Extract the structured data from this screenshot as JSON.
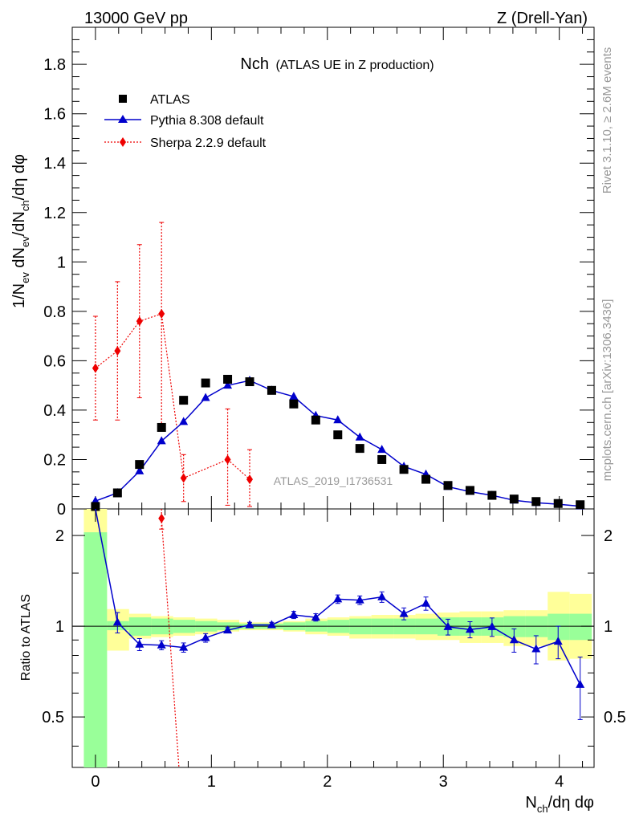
{
  "header": {
    "left": "13000 GeV pp",
    "right": "Z (Drell-Yan)"
  },
  "side": {
    "rivet": "Rivet 3.1.10, ≥ 2.6M events",
    "mcplots": "mcplots.cern.ch [arXiv:1306.3436]"
  },
  "chart_data": {
    "type": "scatter",
    "title_main": "Nch",
    "title_sub": "(ATLAS UE in Z production)",
    "analysis_label": "ATLAS_2019_I1736531",
    "ylabel_parts": [
      "1/N",
      "ev",
      " dN",
      "ev",
      "/dN",
      "ch",
      "/dη dφ"
    ],
    "xlabel_parts": [
      "N",
      "ch",
      "/dη dφ"
    ],
    "ratio_ylabel": "Ratio to ATLAS",
    "xlim": [
      -0.2,
      4.3
    ],
    "main_ylim": [
      0,
      1.95
    ],
    "ratio_ylim": [
      0.34,
      2.45
    ],
    "x_ticks": [
      "0",
      "1",
      "2",
      "3",
      "4"
    ],
    "main_y_ticks": [
      "0",
      "0.2",
      "0.4",
      "0.6",
      "0.8",
      "1",
      "1.2",
      "1.4",
      "1.6",
      "1.8"
    ],
    "ratio_y_ticks": [
      "0.5",
      "1",
      "2"
    ],
    "legend": {
      "position": "top-left",
      "entries": [
        "ATLAS",
        "Pythia 8.308 default",
        "Sherpa 2.2.9 default"
      ]
    },
    "series": [
      {
        "name": "ATLAS",
        "color": "#000000",
        "marker": "square",
        "x": [
          0.0,
          0.19,
          0.38,
          0.57,
          0.76,
          0.95,
          1.14,
          1.33,
          1.52,
          1.71,
          1.9,
          2.09,
          2.28,
          2.47,
          2.66,
          2.85,
          3.04,
          3.23,
          3.42,
          3.61,
          3.8,
          3.99,
          4.18
        ],
        "y": [
          0.01,
          0.065,
          0.18,
          0.33,
          0.44,
          0.51,
          0.525,
          0.515,
          0.48,
          0.425,
          0.36,
          0.3,
          0.245,
          0.2,
          0.16,
          0.12,
          0.095,
          0.075,
          0.055,
          0.04,
          0.03,
          0.022,
          0.017
        ]
      },
      {
        "name": "Pythia 8.308 default",
        "color": "#0000cc",
        "marker": "triangle",
        "x": [
          0.0,
          0.19,
          0.38,
          0.57,
          0.76,
          0.95,
          1.14,
          1.33,
          1.52,
          1.71,
          1.9,
          2.09,
          2.28,
          2.47,
          2.66,
          2.85,
          3.04,
          3.23,
          3.42,
          3.61,
          3.8,
          3.99,
          4.18
        ],
        "y": [
          0.032,
          0.065,
          0.153,
          0.275,
          0.353,
          0.45,
          0.5,
          0.52,
          0.48,
          0.455,
          0.378,
          0.36,
          0.29,
          0.24,
          0.172,
          0.14,
          0.09,
          0.07,
          0.055,
          0.035,
          0.025,
          0.019,
          0.011
        ],
        "ratio": [
          3.2,
          1.03,
          0.87,
          0.865,
          0.85,
          0.915,
          0.97,
          1.01,
          1.01,
          1.09,
          1.07,
          1.23,
          1.22,
          1.25,
          1.1,
          1.19,
          0.995,
          0.975,
          0.995,
          0.9,
          0.84,
          0.89,
          0.64
        ],
        "ratio_err": [
          0,
          0.08,
          0.04,
          0.03,
          0.03,
          0.03,
          0.02,
          0.02,
          0.02,
          0.03,
          0.03,
          0.04,
          0.04,
          0.05,
          0.05,
          0.06,
          0.06,
          0.06,
          0.07,
          0.08,
          0.09,
          0.11,
          0.15
        ]
      },
      {
        "name": "Sherpa 2.2.9 default",
        "color": "#ee0000",
        "marker": "diamond",
        "x": [
          0.0,
          0.19,
          0.38,
          0.57,
          0.76,
          1.14,
          1.33
        ],
        "y": [
          0.57,
          0.64,
          0.76,
          0.79,
          0.125,
          0.2,
          0.12
        ],
        "err_low": [
          0.21,
          0.28,
          0.31,
          0.45,
          0.095,
          0.185,
          0.11
        ],
        "err_high": [
          0.21,
          0.28,
          0.31,
          0.37,
          0.095,
          0.205,
          0.12
        ],
        "ratio_point": {
          "x": 0.57,
          "y": 2.28,
          "err": 0.18
        }
      }
    ],
    "bands": {
      "x_edges": [
        -0.1,
        0.1,
        0.29,
        0.48,
        0.67,
        0.86,
        1.05,
        1.24,
        1.43,
        1.62,
        1.81,
        2.0,
        2.19,
        2.38,
        2.57,
        2.76,
        2.95,
        3.14,
        3.33,
        3.52,
        3.71,
        3.9,
        4.09,
        4.28
      ],
      "inner": [
        [
          0.3,
          2.05
        ],
        [
          0.97,
          1.04
        ],
        [
          0.93,
          1.07
        ],
        [
          0.94,
          1.06
        ],
        [
          0.95,
          1.05
        ],
        [
          0.96,
          1.04
        ],
        [
          0.97,
          1.03
        ],
        [
          0.98,
          1.02
        ],
        [
          0.98,
          1.02
        ],
        [
          0.97,
          1.03
        ],
        [
          0.96,
          1.04
        ],
        [
          0.95,
          1.05
        ],
        [
          0.94,
          1.06
        ],
        [
          0.94,
          1.06
        ],
        [
          0.94,
          1.06
        ],
        [
          0.94,
          1.06
        ],
        [
          0.93,
          1.07
        ],
        [
          0.93,
          1.07
        ],
        [
          0.93,
          1.07
        ],
        [
          0.92,
          1.08
        ],
        [
          0.92,
          1.08
        ],
        [
          0.9,
          1.1
        ],
        [
          0.9,
          1.1
        ]
      ],
      "outer": [
        [
          0.3,
          2.45
        ],
        [
          0.83,
          1.14
        ],
        [
          0.91,
          1.1
        ],
        [
          0.92,
          1.08
        ],
        [
          0.93,
          1.07
        ],
        [
          0.94,
          1.06
        ],
        [
          0.96,
          1.05
        ],
        [
          0.97,
          1.03
        ],
        [
          0.97,
          1.03
        ],
        [
          0.96,
          1.04
        ],
        [
          0.94,
          1.06
        ],
        [
          0.93,
          1.07
        ],
        [
          0.91,
          1.08
        ],
        [
          0.91,
          1.09
        ],
        [
          0.91,
          1.09
        ],
        [
          0.9,
          1.1
        ],
        [
          0.9,
          1.11
        ],
        [
          0.88,
          1.12
        ],
        [
          0.88,
          1.12
        ],
        [
          0.86,
          1.13
        ],
        [
          0.86,
          1.13
        ],
        [
          0.77,
          1.3
        ],
        [
          0.78,
          1.28
        ]
      ]
    },
    "colors": {
      "band_inner": "#99ff99",
      "band_outer": "#ffff99"
    }
  }
}
